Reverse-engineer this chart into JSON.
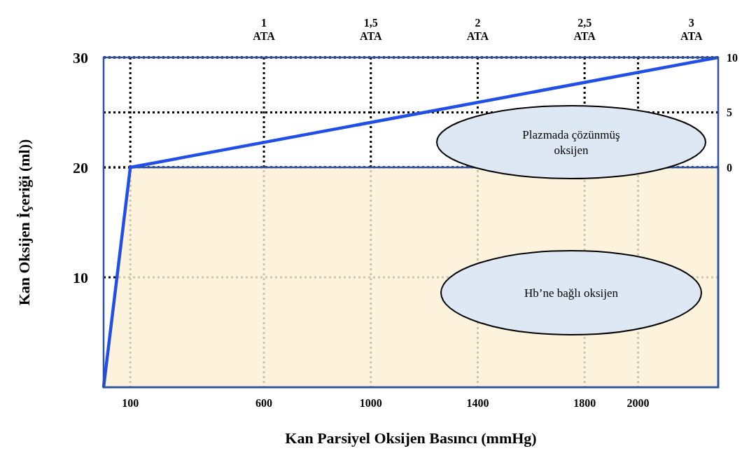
{
  "chart_data": {
    "type": "line",
    "xlabel": "Kan Parsiyel Oksijen Basıncı (mmHg)",
    "ylabel": "Kan Oksijen İçeriği (ml))",
    "xlim": [
      0,
      2300
    ],
    "xticks": [
      100,
      600,
      1000,
      1400,
      1800,
      2000
    ],
    "ylim": [
      0,
      30
    ],
    "yticks": [
      10,
      20,
      30
    ],
    "y2lim": [
      -20,
      10
    ],
    "y2ticks": [
      0,
      5,
      10
    ],
    "x2lim": [
      0.25,
      3.125
    ],
    "x2ticks": [
      {
        "value": 1,
        "label": "1 ATA"
      },
      {
        "value": 1.5,
        "label": "1,5 ATA"
      },
      {
        "value": 2,
        "label": "2 ATA"
      },
      {
        "value": 2.5,
        "label": "2,5 ATA"
      },
      {
        "value": 3,
        "label": "3 ATA"
      }
    ],
    "grid": true,
    "line_style": "solid",
    "series": [
      {
        "type": "area",
        "color": "#fdf0d5",
        "x": [
          0,
          100,
          2300
        ],
        "values": [
          0,
          20,
          20
        ]
      },
      {
        "color": "#1f4fe6",
        "x": [
          0,
          100,
          2300
        ],
        "values": [
          0,
          20,
          30
        ]
      }
    ],
    "annotations": [
      "Plazmada çözünmüş oksijen",
      "Hb’ne bağlı oksijen"
    ]
  }
}
